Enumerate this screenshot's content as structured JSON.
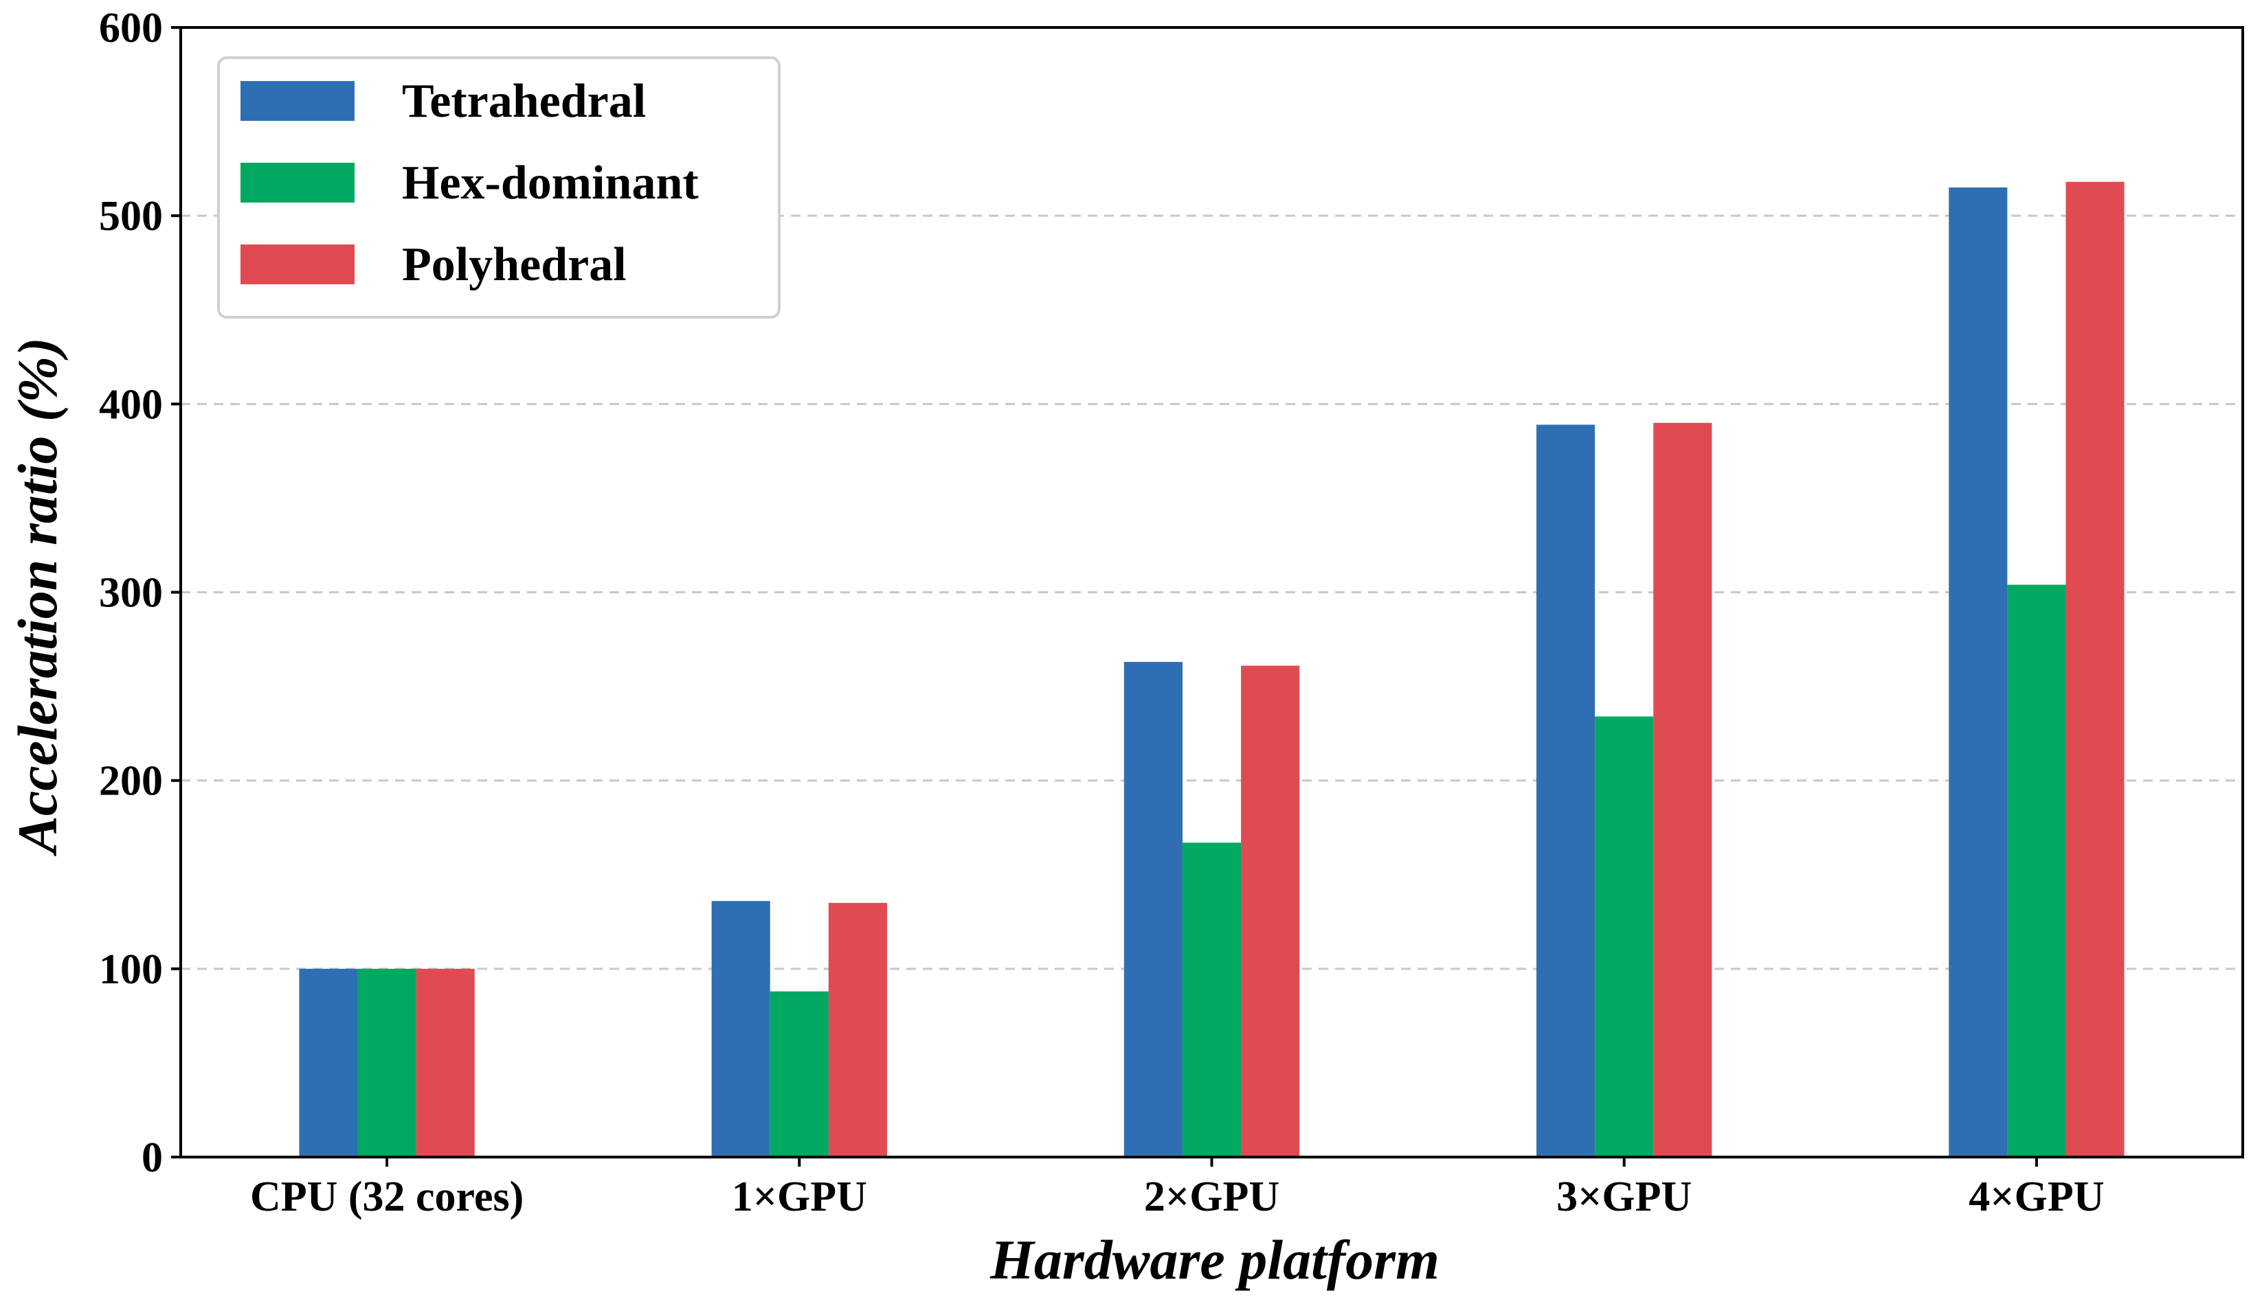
{
  "chart_data": {
    "type": "bar",
    "title": "",
    "xlabel": "Hardware platform",
    "ylabel": "Acceleration ratio (%)",
    "ylim": [
      0,
      600
    ],
    "yticks": [
      0,
      100,
      200,
      300,
      400,
      500,
      600
    ],
    "grid": "horizontal-dashed",
    "legend_position": "top-left",
    "categories": [
      "CPU (32 cores)",
      "1×GPU",
      "2×GPU",
      "3×GPU",
      "4×GPU"
    ],
    "series": [
      {
        "name": "Tetrahedral",
        "color": "#2e6fb4",
        "values": [
          100,
          136,
          263,
          389,
          515
        ]
      },
      {
        "name": "Hex-dominant",
        "color": "#00a862",
        "values": [
          100,
          88,
          167,
          234,
          304
        ]
      },
      {
        "name": "Polyhedral",
        "color": "#e04b52",
        "values": [
          100,
          135,
          261,
          390,
          518
        ]
      }
    ]
  }
}
